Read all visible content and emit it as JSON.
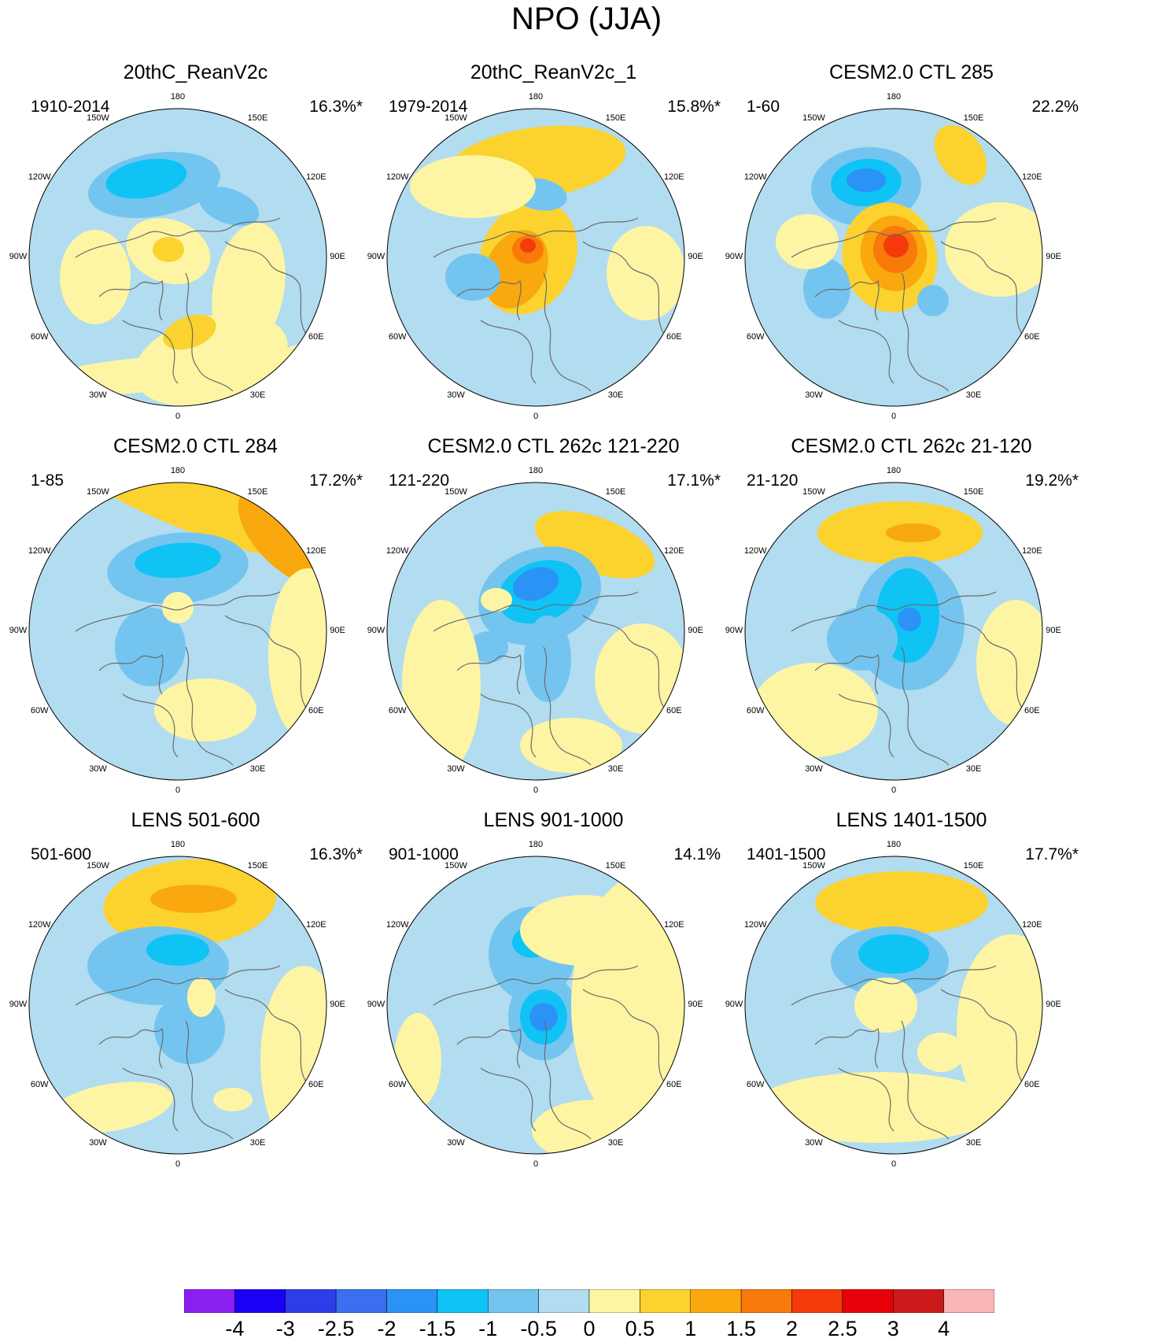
{
  "figure": {
    "title": "NPO (JJA)"
  },
  "panels": [
    {
      "title": "20thC_ReanV2c",
      "period": "1910-2014",
      "variance": "16.3%*"
    },
    {
      "title": "20thC_ReanV2c_1",
      "period": "1979-2014",
      "variance": "15.8%*"
    },
    {
      "title": "CESM2.0 CTL 285",
      "period": "1-60",
      "variance": "22.2%"
    },
    {
      "title": "CESM2.0 CTL 284",
      "period": "1-85",
      "variance": "17.2%*"
    },
    {
      "title": "CESM2.0 CTL 262c 121-220",
      "period": "121-220",
      "variance": "17.1%*"
    },
    {
      "title": "CESM2.0 CTL 262c 21-120",
      "period": "21-120",
      "variance": "19.2%*"
    },
    {
      "title": "LENS 501-600",
      "period": "501-600",
      "variance": "16.3%*"
    },
    {
      "title": "LENS 901-1000",
      "period": "901-1000",
      "variance": "14.1%"
    },
    {
      "title": "LENS 1401-1500",
      "period": "1401-1500",
      "variance": "17.7%*"
    }
  ],
  "longitude_labels": [
    "180",
    "150E",
    "120E",
    "90E",
    "60E",
    "30E",
    "0",
    "30W",
    "60W",
    "90W",
    "120W",
    "150W"
  ],
  "colorbar": {
    "labels": [
      "-4",
      "-3",
      "-2.5",
      "-2",
      "-1.5",
      "-1",
      "-0.5",
      "0",
      "0.5",
      "1",
      "1.5",
      "2",
      "2.5",
      "3",
      "4"
    ],
    "colors": [
      "#8a1ff0",
      "#1a00f5",
      "#2b3ee8",
      "#3b6ff0",
      "#2b93f5",
      "#0fc3f5",
      "#73c5f0",
      "#b2dcf0",
      "#fdf5a3",
      "#fbd22e",
      "#f9a80d",
      "#f77a0b",
      "#f53a0b",
      "#e60009",
      "#cc1a1a",
      "#fab5b5"
    ]
  },
  "palette": {
    "neg05": "#b2dcf0",
    "neg1": "#73c5f0",
    "neg15": "#0fc3f5",
    "neg2": "#2b93f5",
    "neg25": "#3b6ff0",
    "pos05": "#fdf5a3",
    "pos1": "#fbd22e",
    "pos15": "#f9a80d",
    "pos2": "#f77a0b",
    "pos25": "#f53a0b",
    "coast": "#6b6b6b"
  }
}
